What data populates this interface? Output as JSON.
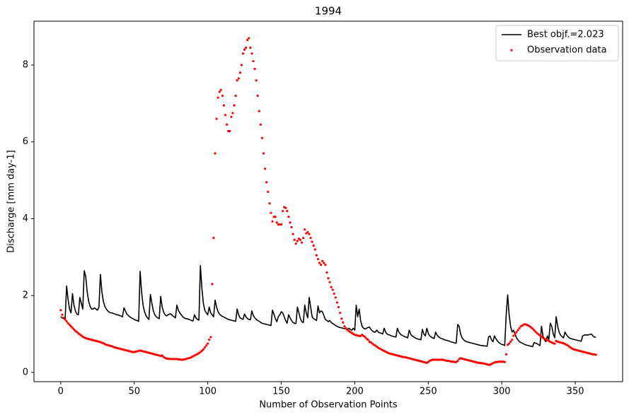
{
  "chart_data": {
    "type": "line",
    "title": "1994",
    "xlabel": "Number of Observation Points",
    "ylabel": "Discharge [mm day-1]",
    "xlim": [
      -18.2,
      382.2
    ],
    "ylim": [
      -0.24,
      9.14
    ],
    "xticks": [
      0,
      50,
      100,
      150,
      200,
      250,
      300,
      350
    ],
    "yticks": [
      0,
      2,
      4,
      6,
      8
    ],
    "legend": "upper right",
    "x": [
      0,
      1,
      2,
      3,
      4,
      5,
      6,
      7,
      8,
      9,
      10,
      11,
      12,
      13,
      14,
      15,
      16,
      17,
      18,
      19,
      20,
      21,
      22,
      23,
      24,
      25,
      26,
      27,
      28,
      29,
      30,
      31,
      32,
      33,
      34,
      35,
      36,
      37,
      38,
      39,
      40,
      41,
      42,
      43,
      44,
      45,
      46,
      47,
      48,
      49,
      50,
      51,
      52,
      53,
      54,
      55,
      56,
      57,
      58,
      59,
      60,
      61,
      62,
      63,
      64,
      65,
      66,
      67,
      68,
      69,
      70,
      71,
      72,
      73,
      74,
      75,
      76,
      77,
      78,
      79,
      80,
      81,
      82,
      83,
      84,
      85,
      86,
      87,
      88,
      89,
      90,
      91,
      92,
      93,
      94,
      95,
      96,
      97,
      98,
      99,
      100,
      101,
      102,
      103,
      104,
      105,
      106,
      107,
      108,
      109,
      110,
      111,
      112,
      113,
      114,
      115,
      116,
      117,
      118,
      119,
      120,
      121,
      122,
      123,
      124,
      125,
      126,
      127,
      128,
      129,
      130,
      131,
      132,
      133,
      134,
      135,
      136,
      137,
      138,
      139,
      140,
      141,
      142,
      143,
      144,
      145,
      146,
      147,
      148,
      149,
      150,
      151,
      152,
      153,
      154,
      155,
      156,
      157,
      158,
      159,
      160,
      161,
      162,
      163,
      164,
      165,
      166,
      167,
      168,
      169,
      170,
      171,
      172,
      173,
      174,
      175,
      176,
      177,
      178,
      179,
      180,
      181,
      182,
      183,
      184,
      185,
      186,
      187,
      188,
      189,
      190,
      191,
      192,
      193,
      194,
      195,
      196,
      197,
      198,
      199,
      200,
      201,
      202,
      203,
      204,
      205,
      206,
      207,
      208,
      209,
      210,
      211,
      212,
      213,
      214,
      215,
      216,
      217,
      218,
      219,
      220,
      221,
      222,
      223,
      224,
      225,
      226,
      227,
      228,
      229,
      230,
      231,
      232,
      233,
      234,
      235,
      236,
      237,
      238,
      239,
      240,
      241,
      242,
      243,
      244,
      245,
      246,
      247,
      248,
      249,
      250,
      251,
      252,
      253,
      254,
      255,
      256,
      257,
      258,
      259,
      260,
      261,
      262,
      263,
      264,
      265,
      266,
      267,
      268,
      269,
      270,
      271,
      272,
      273,
      274,
      275,
      276,
      277,
      278,
      279,
      280,
      281,
      282,
      283,
      284,
      285,
      286,
      287,
      288,
      289,
      290,
      291,
      292,
      293,
      294,
      295,
      296,
      297,
      298,
      299,
      300,
      301,
      302,
      303,
      304,
      305,
      306,
      307,
      308,
      309,
      310,
      311,
      312,
      313,
      314,
      315,
      316,
      317,
      318,
      319,
      320,
      321,
      322,
      323,
      324,
      325,
      326,
      327,
      328,
      329,
      330,
      331,
      332,
      333,
      334,
      335,
      336,
      337,
      338,
      339,
      340,
      341,
      342,
      343,
      344,
      345,
      346,
      347,
      348,
      349,
      350,
      351,
      352,
      353,
      354,
      355,
      356,
      357,
      358,
      359,
      360,
      361,
      362,
      363,
      364
    ],
    "series": [
      {
        "name": "Best objf.=2.023",
        "type": "line",
        "color": "#000000",
        "values": [
          1.45,
          1.42,
          1.4,
          1.38,
          2.25,
          1.9,
          1.65,
          1.55,
          2.05,
          1.75,
          1.6,
          1.52,
          1.5,
          1.95,
          1.8,
          1.65,
          2.65,
          2.5,
          2.1,
          1.85,
          1.72,
          1.65,
          1.65,
          1.68,
          1.65,
          1.62,
          1.7,
          2.55,
          2.1,
          1.85,
          1.72,
          1.65,
          1.6,
          1.57,
          1.55,
          1.55,
          1.53,
          1.52,
          1.5,
          1.5,
          1.48,
          1.47,
          1.45,
          1.68,
          1.6,
          1.52,
          1.48,
          1.45,
          1.42,
          1.4,
          1.38,
          1.36,
          1.35,
          1.33,
          2.63,
          2.1,
          1.75,
          1.58,
          1.48,
          1.42,
          1.38,
          2.03,
          1.8,
          1.6,
          1.5,
          1.45,
          1.42,
          1.4,
          1.98,
          1.7,
          1.57,
          1.5,
          1.47,
          1.5,
          1.52,
          1.52,
          1.48,
          1.45,
          1.42,
          1.75,
          1.62,
          1.55,
          1.5,
          1.45,
          1.42,
          1.4,
          1.4,
          1.38,
          1.37,
          1.35,
          1.34,
          1.5,
          1.42,
          1.38,
          1.36,
          2.78,
          2.2,
          1.8,
          1.62,
          1.55,
          1.5,
          1.7,
          1.55,
          1.5,
          1.45,
          1.88,
          1.7,
          1.58,
          1.52,
          1.48,
          1.46,
          1.44,
          1.42,
          1.4,
          1.38,
          1.37,
          1.36,
          1.35,
          1.34,
          1.33,
          1.65,
          1.5,
          1.42,
          1.4,
          1.38,
          1.52,
          1.45,
          1.4,
          1.38,
          1.37,
          1.6,
          1.48,
          1.42,
          1.38,
          1.35,
          1.33,
          1.3,
          1.28,
          1.27,
          1.26,
          1.25,
          1.24,
          1.23,
          1.22,
          1.62,
          1.52,
          1.4,
          1.32,
          1.45,
          1.5,
          1.58,
          1.55,
          1.45,
          1.35,
          1.28,
          1.5,
          1.42,
          1.35,
          1.3,
          1.28,
          1.27,
          1.7,
          1.55,
          1.4,
          1.32,
          1.3,
          1.75,
          1.55,
          1.42,
          1.95,
          1.7,
          1.45,
          1.4,
          1.38,
          1.35,
          1.73,
          1.55,
          1.6,
          1.58,
          1.48,
          1.38,
          1.35,
          1.32,
          1.35,
          1.3,
          1.27,
          1.25,
          1.22,
          1.2,
          1.18,
          1.17,
          1.16,
          1.15,
          1.14,
          1.13,
          1.12,
          1.15,
          1.12,
          1.1,
          1.15,
          1.1,
          1.75,
          1.45,
          1.65,
          1.35,
          1.2,
          1.15,
          1.13,
          1.15,
          1.17,
          1.18,
          1.12,
          1.08,
          1.05,
          1.05,
          1.1,
          1.05,
          1.03,
          1.02,
          1.0,
          1.15,
          1.05,
          1.0,
          0.98,
          0.97,
          0.95,
          0.94,
          0.93,
          0.92,
          1.15,
          1.05,
          1.0,
          0.97,
          0.95,
          0.93,
          0.92,
          0.9,
          1.1,
          1.0,
          0.95,
          0.93,
          0.9,
          0.88,
          0.87,
          0.86,
          0.85,
          1.12,
          1.0,
          0.95,
          1.15,
          1.02,
          0.95,
          0.92,
          0.9,
          0.88,
          1.05,
          0.97,
          0.93,
          0.9,
          0.88,
          0.87,
          0.85,
          0.84,
          0.83,
          0.82,
          0.8,
          0.79,
          0.78,
          0.77,
          0.76,
          1.25,
          1.2,
          1.0,
          0.9,
          0.85,
          0.82,
          0.8,
          0.79,
          0.78,
          0.77,
          0.76,
          0.75,
          0.74,
          0.73,
          0.72,
          0.71,
          0.7,
          0.7,
          0.69,
          0.69,
          0.68,
          0.92,
          0.95,
          0.85,
          0.8,
          0.95,
          0.88,
          0.82,
          0.78,
          0.75,
          0.73,
          0.72,
          0.7,
          1.5,
          2.02,
          1.5,
          1.2,
          1.05,
          1.1,
          1.0,
          0.9,
          0.85,
          0.8,
          0.78,
          0.76,
          0.74,
          0.72,
          0.71,
          0.7,
          0.69,
          0.68,
          0.67,
          0.78,
          0.76,
          0.75,
          0.72,
          0.7,
          1.2,
          0.95,
          0.85,
          0.8,
          0.95,
          0.85,
          1.28,
          1.2,
          1.0,
          0.9,
          1.45,
          1.2,
          1.05,
          0.97,
          0.93,
          0.9,
          1.05,
          0.98,
          0.93,
          0.9,
          0.88,
          0.87,
          0.86,
          0.85,
          0.84,
          0.83,
          0.82,
          0.81,
          0.95,
          0.97,
          0.98,
          0.97,
          0.98,
          0.99,
          1.0,
          0.95,
          0.92,
          0.92
        ]
      },
      {
        "name": "Observation data",
        "type": "scatter",
        "color": "#ff0000",
        "values": [
          1.62,
          1.5,
          1.42,
          1.38,
          1.33,
          1.28,
          1.24,
          1.2,
          1.16,
          1.12,
          1.08,
          1.05,
          1.02,
          0.99,
          0.96,
          0.93,
          0.91,
          0.89,
          0.88,
          0.87,
          0.86,
          0.85,
          0.84,
          0.83,
          0.82,
          0.81,
          0.8,
          0.79,
          0.77,
          0.76,
          0.74,
          0.72,
          0.71,
          0.7,
          0.69,
          0.68,
          0.66,
          0.65,
          0.64,
          0.63,
          0.62,
          0.61,
          0.6,
          0.59,
          0.58,
          0.57,
          0.56,
          0.55,
          0.54,
          0.53,
          0.53,
          0.54,
          0.55,
          0.56,
          0.57,
          0.56,
          0.55,
          0.54,
          0.53,
          0.52,
          0.51,
          0.5,
          0.49,
          0.48,
          0.47,
          0.46,
          0.45,
          0.44,
          0.43,
          0.44,
          0.4,
          0.38,
          0.36,
          0.36,
          0.35,
          0.35,
          0.35,
          0.35,
          0.35,
          0.35,
          0.34,
          0.34,
          0.33,
          0.33,
          0.34,
          0.35,
          0.36,
          0.37,
          0.38,
          0.4,
          0.42,
          0.44,
          0.46,
          0.48,
          0.5,
          0.53,
          0.56,
          0.6,
          0.65,
          0.7,
          0.75,
          0.85,
          0.92,
          2.3,
          3.5,
          5.7,
          6.6,
          7.15,
          7.3,
          7.35,
          7.2,
          6.95,
          6.7,
          6.45,
          6.28,
          6.28,
          6.65,
          6.75,
          6.95,
          7.2,
          7.6,
          7.65,
          7.8,
          8.0,
          8.3,
          8.4,
          8.45,
          8.65,
          8.7,
          8.45,
          8.3,
          8.1,
          7.9,
          7.6,
          7.2,
          6.8,
          6.45,
          6.1,
          5.7,
          5.3,
          4.95,
          4.7,
          4.4,
          4.15,
          3.93,
          4.05,
          4.05,
          3.9,
          3.85,
          3.85,
          3.85,
          4.2,
          4.3,
          4.28,
          4.2,
          4.05,
          3.9,
          3.78,
          3.6,
          3.45,
          3.35,
          3.42,
          3.48,
          3.45,
          3.38,
          3.5,
          3.72,
          3.62,
          3.65,
          3.6,
          3.5,
          3.4,
          3.3,
          3.2,
          3.05,
          2.95,
          2.85,
          2.8,
          2.9,
          2.85,
          2.8,
          2.6,
          2.45,
          2.35,
          2.22,
          2.15,
          2.05,
          1.95,
          1.82,
          1.7,
          1.55,
          1.4,
          1.3,
          1.2,
          1.15,
          1.1,
          1.08,
          1.05,
          1.03,
          1.0,
          0.98,
          0.97,
          0.96,
          0.95,
          0.95,
          0.98,
          0.95,
          0.92,
          0.88,
          0.85,
          0.8,
          0.78,
          0.75,
          0.72,
          0.7,
          0.67,
          0.64,
          0.62,
          0.6,
          0.58,
          0.56,
          0.54,
          0.52,
          0.5,
          0.49,
          0.48,
          0.47,
          0.46,
          0.45,
          0.44,
          0.43,
          0.42,
          0.41,
          0.4,
          0.4,
          0.39,
          0.38,
          0.37,
          0.36,
          0.35,
          0.34,
          0.33,
          0.32,
          0.31,
          0.3,
          0.29,
          0.28,
          0.27,
          0.26,
          0.25,
          0.27,
          0.3,
          0.32,
          0.33,
          0.33,
          0.33,
          0.33,
          0.33,
          0.33,
          0.33,
          0.33,
          0.32,
          0.31,
          0.3,
          0.3,
          0.29,
          0.28,
          0.28,
          0.27,
          0.27,
          0.3,
          0.35,
          0.37,
          0.36,
          0.35,
          0.34,
          0.33,
          0.32,
          0.31,
          0.3,
          0.29,
          0.28,
          0.27,
          0.26,
          0.25,
          0.25,
          0.24,
          0.24,
          0.23,
          0.22,
          0.21,
          0.2,
          0.2,
          0.22,
          0.24,
          0.26,
          0.27,
          0.27,
          0.28,
          0.28,
          0.28,
          0.28,
          0.27,
          0.47,
          0.72,
          0.75,
          0.8,
          0.85,
          0.95,
          1.0,
          1.05,
          1.1,
          1.15,
          1.2,
          1.22,
          1.25,
          1.25,
          1.24,
          1.22,
          1.2,
          1.17,
          1.14,
          1.1,
          1.06,
          1.02,
          0.99,
          0.96,
          0.93,
          0.9,
          0.88,
          0.86,
          0.84,
          0.82,
          0.8,
          0.78,
          0.76,
          0.75,
          0.82,
          0.8,
          0.79,
          0.78,
          0.77,
          0.76,
          0.74,
          0.72,
          0.7,
          0.67,
          0.64,
          0.62,
          0.6,
          0.59,
          0.58,
          0.57,
          0.56,
          0.55,
          0.54,
          0.53,
          0.52,
          0.51,
          0.5,
          0.49,
          0.48,
          0.47,
          0.47,
          0.46
        ]
      }
    ]
  }
}
